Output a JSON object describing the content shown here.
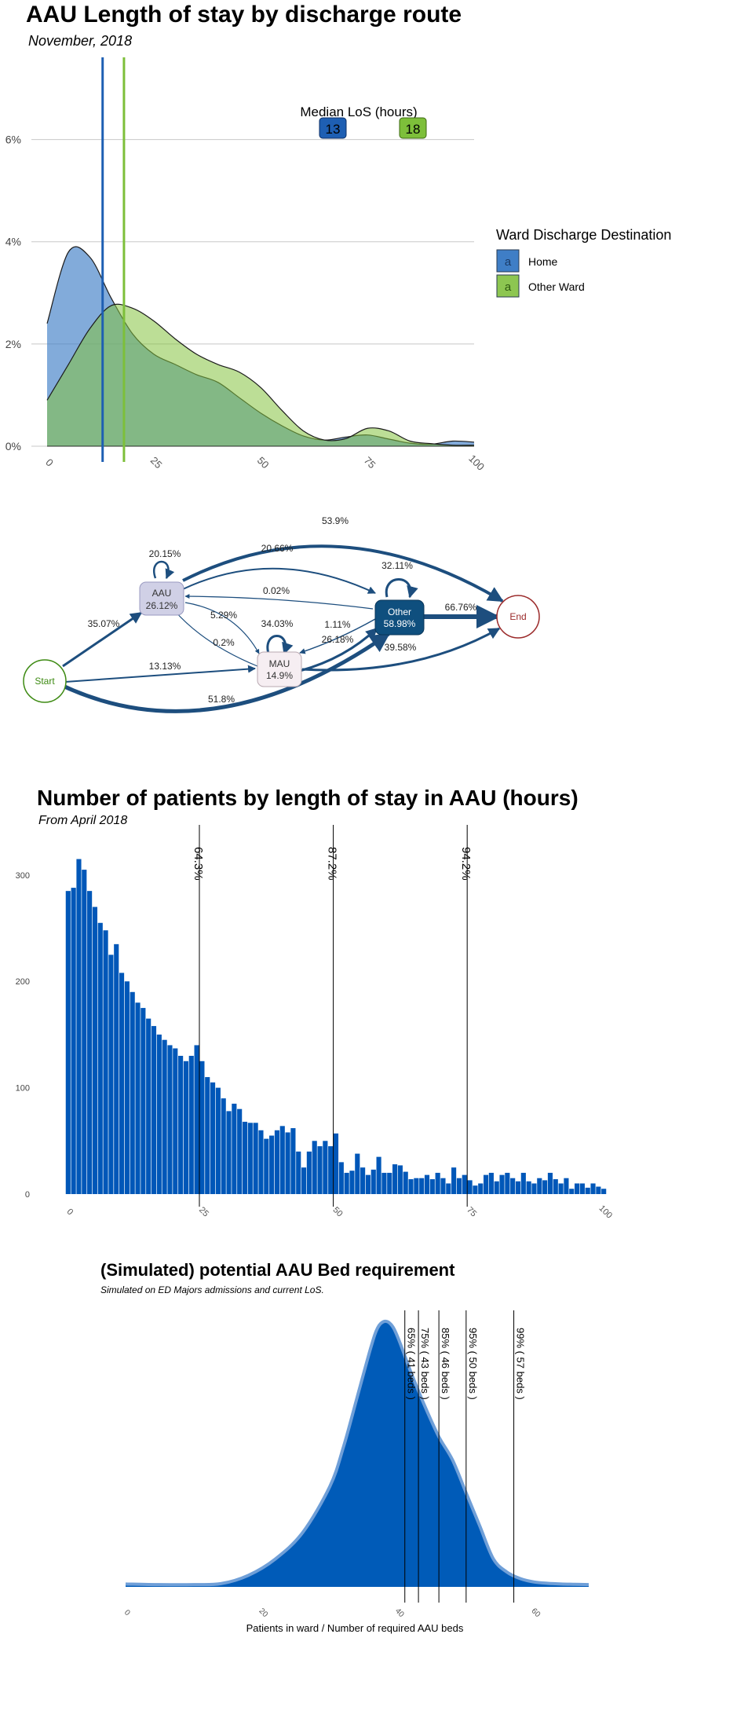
{
  "panel1": {
    "title": "AAU Length of stay by discharge route",
    "subtitle": "November, 2018",
    "median_label": "Median LoS (hours)",
    "legend_title": "Ward Discharge Destination",
    "legend_glyph": "a",
    "chart_data": {
      "type": "area",
      "x": [
        0,
        5,
        10,
        15,
        20,
        25,
        30,
        35,
        40,
        45,
        50,
        55,
        60,
        65,
        70,
        75,
        80,
        85,
        90,
        95,
        100
      ],
      "xlim": [
        0,
        100
      ],
      "ylim": [
        0,
        7.5
      ],
      "xticks": [
        "0",
        "25",
        "50",
        "75",
        "100"
      ],
      "yticks": [
        {
          "v": 0,
          "label": "0%"
        },
        {
          "v": 2,
          "label": "2%"
        },
        {
          "v": 4,
          "label": "4%"
        },
        {
          "v": 6,
          "label": "6%"
        }
      ],
      "series": [
        {
          "name": "Home",
          "color": "#3f7ec6",
          "fill": "rgba(63,126,198,0.65)",
          "median": 13,
          "values": [
            2.4,
            3.8,
            3.7,
            2.9,
            2.2,
            1.8,
            1.6,
            1.4,
            1.25,
            0.95,
            0.65,
            0.4,
            0.2,
            0.12,
            0.18,
            0.22,
            0.14,
            0.06,
            0.04,
            0.1,
            0.08
          ]
        },
        {
          "name": "Other Ward",
          "color": "#7dbf3a",
          "fill": "rgba(133,194,64,0.55)",
          "median": 18,
          "values": [
            0.9,
            1.6,
            2.3,
            2.75,
            2.7,
            2.45,
            2.1,
            1.8,
            1.6,
            1.45,
            1.15,
            0.7,
            0.3,
            0.12,
            0.15,
            0.35,
            0.3,
            0.1,
            0.05,
            0.02,
            0.02
          ]
        }
      ]
    }
  },
  "panel2": {
    "nodes": [
      {
        "key": "aau",
        "name": "AAU",
        "value": "26.12%"
      },
      {
        "key": "other",
        "name": "Other",
        "value": "58.98%"
      },
      {
        "key": "mau",
        "name": "MAU",
        "value": "14.9%"
      },
      {
        "key": "start",
        "name": "Start"
      },
      {
        "key": "end",
        "name": "End"
      }
    ],
    "edges": [
      {
        "key": "start_end",
        "label": "51.8%"
      },
      {
        "key": "start_aau",
        "label": "35.07%"
      },
      {
        "key": "start_mau",
        "label": "13.13%"
      },
      {
        "key": "aau_end",
        "label": "53.9%"
      },
      {
        "key": "aau_other",
        "label": "20.66%"
      },
      {
        "key": "aau_self",
        "label": "20.15%"
      },
      {
        "key": "aau_mau",
        "label": "5.29%"
      },
      {
        "key": "other_aau",
        "label": "0.02%"
      },
      {
        "key": "other_self",
        "label": "32.11%"
      },
      {
        "key": "other_end",
        "label": "66.76%"
      },
      {
        "key": "other_mau",
        "label": "1.11%"
      },
      {
        "key": "mau_other",
        "label": "26.18%"
      },
      {
        "key": "mau_end",
        "label": "39.58%"
      },
      {
        "key": "mau_self",
        "label": "34.03%"
      },
      {
        "key": "mau_aau",
        "label": "0.2%"
      }
    ]
  },
  "panel3": {
    "title": "Number of patients by length of stay in AAU (hours)",
    "subtitle": "From April 2018",
    "color": "#0057b8",
    "chart_data": {
      "type": "bar",
      "x_start": 0,
      "x_step": 1,
      "xlim": [
        -1,
        101
      ],
      "ylim": [
        0,
        325
      ],
      "xticks": [
        "0",
        "25",
        "50",
        "75",
        "100"
      ],
      "yticks": [
        "0",
        "100",
        "200",
        "300"
      ],
      "values": [
        285,
        288,
        315,
        305,
        285,
        270,
        255,
        248,
        225,
        235,
        208,
        200,
        190,
        180,
        175,
        165,
        158,
        150,
        145,
        140,
        137,
        130,
        125,
        130,
        140,
        125,
        110,
        105,
        100,
        90,
        78,
        85,
        80,
        68,
        67,
        67,
        60,
        52,
        55,
        60,
        64,
        58,
        62,
        40,
        25,
        40,
        50,
        45,
        50,
        45,
        57,
        30,
        20,
        22,
        38,
        25,
        18,
        23,
        35,
        20,
        20,
        28,
        27,
        21,
        14,
        15,
        15,
        18,
        14,
        20,
        15,
        10,
        25,
        15,
        18,
        13,
        8,
        10,
        18,
        20,
        12,
        18,
        20,
        15,
        12,
        20,
        12,
        10,
        15,
        13,
        20,
        14,
        10,
        15,
        5,
        10,
        10,
        6,
        10,
        7,
        5
      ],
      "vlines": [
        {
          "x": 24.5,
          "label": "64.3%"
        },
        {
          "x": 49.5,
          "label": "87.2%"
        },
        {
          "x": 74.5,
          "label": "94.2%"
        }
      ]
    }
  },
  "panel4": {
    "title": "(Simulated) potential AAU Bed requirement",
    "subtitle": "Simulated on ED Majors admissions and current LoS.",
    "xlabel": "Patients in ward / Number of required AAU beds",
    "chart_data": {
      "type": "area",
      "x": [
        0,
        5,
        10,
        14,
        18,
        22,
        26,
        30,
        32,
        34,
        36,
        37,
        38,
        39,
        40,
        42,
        44,
        46,
        48,
        50,
        52,
        54,
        56,
        58,
        60,
        62,
        64,
        66,
        68
      ],
      "values": [
        0.004,
        0.002,
        0.002,
        0.005,
        0.03,
        0.08,
        0.16,
        0.3,
        0.42,
        0.57,
        0.72,
        0.78,
        0.8,
        0.79,
        0.75,
        0.64,
        0.54,
        0.45,
        0.38,
        0.28,
        0.18,
        0.08,
        0.04,
        0.02,
        0.01,
        0.006,
        0.004,
        0.003,
        0.002
      ],
      "xlim": [
        0,
        68
      ],
      "ylim": [
        0,
        0.8
      ],
      "xticks": [
        "0",
        "20",
        "40",
        "60"
      ],
      "color": "#005bb8",
      "vlines": [
        {
          "x": 41,
          "label": "65% ( 41 beds )"
        },
        {
          "x": 43,
          "label": "75% ( 43 beds )"
        },
        {
          "x": 46,
          "label": "85% ( 46 beds )"
        },
        {
          "x": 50,
          "label": "95% ( 50 beds )"
        },
        {
          "x": 57,
          "label": "99% ( 57 beds )"
        }
      ]
    }
  }
}
